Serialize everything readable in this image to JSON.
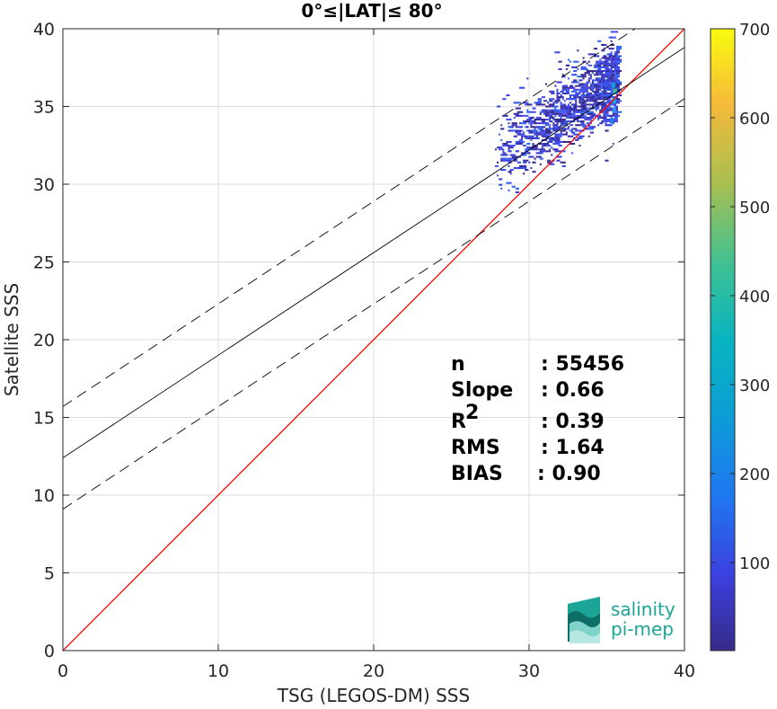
{
  "chart_data": {
    "type": "heatmap",
    "title": "0°≤|LAT|≤ 80°",
    "xlabel": "TSG (LEGOS-DM) SSS",
    "ylabel": "Satellite SSS",
    "xlim": [
      0,
      40
    ],
    "ylim": [
      0,
      40
    ],
    "x_ticks": [
      "0",
      "10",
      "20",
      "30",
      "40"
    ],
    "y_ticks": [
      "0",
      "5",
      "10",
      "15",
      "20",
      "25",
      "30",
      "35",
      "40"
    ],
    "grid": true,
    "colorbar": {
      "range": [
        1,
        700
      ],
      "ticks": [
        "100",
        "200",
        "300",
        "400",
        "500",
        "600",
        "700"
      ],
      "tick_values": [
        100,
        200,
        300,
        400,
        500,
        600,
        700
      ],
      "colormap": "parula"
    },
    "density_region": {
      "x": [
        27.8,
        35.7
      ],
      "y": [
        28.7,
        40
      ]
    },
    "lines": [
      {
        "name": "one-to-one",
        "color": "#ff0000",
        "style": "solid",
        "x": [
          0,
          40
        ],
        "y": [
          0,
          40
        ]
      },
      {
        "name": "fit",
        "color": "#000000",
        "style": "solid",
        "x": [
          0,
          40
        ],
        "y": [
          12.4,
          38.8
        ]
      },
      {
        "name": "fit-upper",
        "color": "#000000",
        "style": "dashed",
        "x": [
          0,
          40
        ],
        "y": [
          15.7,
          42.1
        ]
      },
      {
        "name": "fit-lower",
        "color": "#000000",
        "style": "dashed",
        "x": [
          0,
          40
        ],
        "y": [
          9.1,
          35.5
        ]
      }
    ],
    "stats": [
      {
        "label": "n",
        "value": ": 55456"
      },
      {
        "label": "Slope",
        "value": ": 0.66"
      },
      {
        "label": "R",
        "superscript": "2",
        "value": ": 0.39"
      },
      {
        "label": "RMS",
        "value": ": 1.64"
      },
      {
        "label": "BIAS",
        "value": ": 0.90"
      }
    ]
  },
  "logo": {
    "line1": "salinity",
    "line2": "pi-mep"
  }
}
